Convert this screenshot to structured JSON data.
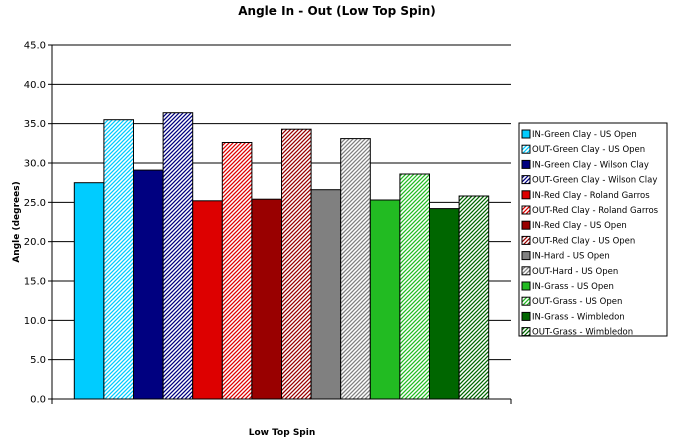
{
  "chart_data": {
    "type": "bar",
    "title": "Angle In - Out (Low Top Spin)",
    "xlabel": "Low Top Spin",
    "ylabel": "Angle (degrees)",
    "ylim": [
      0,
      45
    ],
    "ytick_step": 5,
    "yticks": [
      "0.0",
      "5.0",
      "10.0",
      "15.0",
      "20.0",
      "25.0",
      "30.0",
      "35.0",
      "40.0",
      "45.0"
    ],
    "grid": true,
    "legend_position": "right",
    "categories": [
      "Low Top Spin"
    ],
    "series": [
      {
        "name": "IN-Green Clay - US Open",
        "value": 27.5,
        "color": "#00ccff",
        "pattern": "solid"
      },
      {
        "name": "OUT-Green Clay - US Open",
        "value": 35.5,
        "color": "#00ccff",
        "pattern": "hatch"
      },
      {
        "name": "IN-Green Clay - Wilson Clay",
        "value": 29.1,
        "color": "#000080",
        "pattern": "solid"
      },
      {
        "name": "OUT-Green Clay - Wilson Clay",
        "value": 36.4,
        "color": "#000080",
        "pattern": "hatch"
      },
      {
        "name": "IN-Red Clay - Roland Garros",
        "value": 25.2,
        "color": "#dd0000",
        "pattern": "solid"
      },
      {
        "name": "OUT-Red Clay - Roland Garros",
        "value": 32.6,
        "color": "#dd0000",
        "pattern": "hatch"
      },
      {
        "name": "IN-Red Clay - US Open",
        "value": 25.4,
        "color": "#990000",
        "pattern": "solid"
      },
      {
        "name": "OUT-Red Clay - US Open",
        "value": 34.3,
        "color": "#990000",
        "pattern": "hatch"
      },
      {
        "name": "IN-Hard - US Open",
        "value": 26.6,
        "color": "#808080",
        "pattern": "solid"
      },
      {
        "name": "OUT-Hard - US Open",
        "value": 33.1,
        "color": "#808080",
        "pattern": "hatch"
      },
      {
        "name": "IN-Grass - US Open",
        "value": 25.3,
        "color": "#22bb22",
        "pattern": "solid"
      },
      {
        "name": "OUT-Grass - US Open",
        "value": 28.6,
        "color": "#22bb22",
        "pattern": "hatch"
      },
      {
        "name": "IN-Grass - Wimbledon",
        "value": 24.2,
        "color": "#006600",
        "pattern": "solid"
      },
      {
        "name": "OUT-Grass - Wimbledon",
        "value": 25.8,
        "color": "#006600",
        "pattern": "hatch"
      }
    ]
  }
}
